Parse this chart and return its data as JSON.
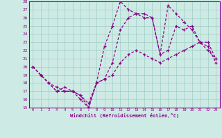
{
  "title": "",
  "xlabel": "Windchill (Refroidissement éolien,°C)",
  "ylabel": "",
  "xlim": [
    -0.5,
    23.5
  ],
  "ylim": [
    15,
    28
  ],
  "yticks": [
    15,
    16,
    17,
    18,
    19,
    20,
    21,
    22,
    23,
    24,
    25,
    26,
    27,
    28
  ],
  "xticks": [
    0,
    1,
    2,
    3,
    4,
    5,
    6,
    7,
    8,
    9,
    10,
    11,
    12,
    13,
    14,
    15,
    16,
    17,
    18,
    19,
    20,
    21,
    22,
    23
  ],
  "bg_color": "#ceeae4",
  "line_color": "#880088",
  "series": [
    {
      "x": [
        0,
        1,
        2,
        3,
        4,
        5,
        6,
        7,
        8,
        9,
        10,
        11,
        12,
        13,
        14,
        15,
        16,
        17,
        18,
        19,
        20,
        21,
        22,
        23
      ],
      "y": [
        20.0,
        19.0,
        18.0,
        17.5,
        17.0,
        17.0,
        16.5,
        15.5,
        18.0,
        18.5,
        19.0,
        20.5,
        21.5,
        22.0,
        21.5,
        21.0,
        20.5,
        21.0,
        21.5,
        22.0,
        22.5,
        23.0,
        22.0,
        21.0
      ]
    },
    {
      "x": [
        0,
        1,
        2,
        3,
        4,
        5,
        6,
        7,
        8,
        9,
        10,
        11,
        12,
        13,
        14,
        15,
        16,
        17,
        18,
        19,
        20,
        21,
        22,
        23
      ],
      "y": [
        20.0,
        19.0,
        18.0,
        17.0,
        17.5,
        17.0,
        16.0,
        15.0,
        18.0,
        18.5,
        20.5,
        24.5,
        26.0,
        26.5,
        26.5,
        26.0,
        21.5,
        22.0,
        25.0,
        24.5,
        25.0,
        23.0,
        22.5,
        20.5
      ]
    },
    {
      "x": [
        0,
        1,
        2,
        3,
        4,
        5,
        6,
        7,
        8,
        9,
        10,
        11,
        12,
        13,
        14,
        15,
        16,
        17,
        18,
        19,
        20,
        21,
        22,
        23
      ],
      "y": [
        20.0,
        19.0,
        18.0,
        17.0,
        17.0,
        17.0,
        16.5,
        15.0,
        18.0,
        22.5,
        25.0,
        28.0,
        27.0,
        26.5,
        26.0,
        26.0,
        21.5,
        27.5,
        26.5,
        25.5,
        24.5,
        23.0,
        23.0,
        21.0
      ]
    }
  ]
}
